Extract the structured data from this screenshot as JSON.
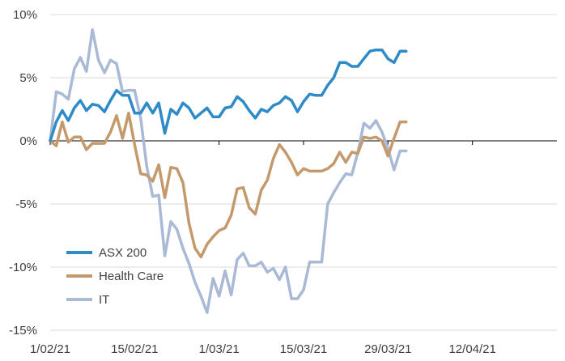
{
  "chart_data": {
    "type": "line",
    "title": "",
    "xlabel": "",
    "ylabel": "",
    "ylim": [
      -15,
      10
    ],
    "yticks": [
      -15,
      -10,
      -5,
      0,
      5,
      10
    ],
    "ytick_labels": [
      "-15%",
      "-10%",
      "-5%",
      "0%",
      "5%",
      "10%"
    ],
    "xlim": [
      "2021-02-01",
      "2021-04-26"
    ],
    "xticks": [
      "2021-02-01",
      "2021-02-15",
      "2021-03-01",
      "2021-03-15",
      "2021-03-29",
      "2021-04-12"
    ],
    "xtick_labels": [
      "1/02/21",
      "15/02/21",
      "1/03/21",
      "15/03/21",
      "29/03/21",
      "12/04/21"
    ],
    "grid": "horizontal",
    "legend_position": "bottom-left",
    "series": [
      {
        "name": "ASX 200",
        "color": "#2E8BC8",
        "points": [
          [
            "2021-02-01",
            0.0
          ],
          [
            "2021-02-02",
            1.5
          ],
          [
            "2021-02-03",
            2.4
          ],
          [
            "2021-02-04",
            1.6
          ],
          [
            "2021-02-05",
            2.6
          ],
          [
            "2021-02-06",
            3.2
          ],
          [
            "2021-02-07",
            2.4
          ],
          [
            "2021-02-08",
            2.9
          ],
          [
            "2021-02-09",
            2.8
          ],
          [
            "2021-02-10",
            2.3
          ],
          [
            "2021-02-11",
            3.2
          ],
          [
            "2021-02-12",
            4.0
          ],
          [
            "2021-02-13",
            3.6
          ],
          [
            "2021-02-14",
            3.6
          ],
          [
            "2021-02-15",
            2.2
          ],
          [
            "2021-02-16",
            2.2
          ],
          [
            "2021-02-17",
            3.0
          ],
          [
            "2021-02-18",
            2.2
          ],
          [
            "2021-02-19",
            3.0
          ],
          [
            "2021-02-20",
            0.6
          ],
          [
            "2021-02-21",
            2.5
          ],
          [
            "2021-02-22",
            2.1
          ],
          [
            "2021-02-23",
            3.0
          ],
          [
            "2021-02-24",
            2.6
          ],
          [
            "2021-02-25",
            1.8
          ],
          [
            "2021-02-26",
            2.2
          ],
          [
            "2021-02-27",
            2.6
          ],
          [
            "2021-02-28",
            1.9
          ],
          [
            "2021-03-01",
            1.9
          ],
          [
            "2021-03-02",
            2.6
          ],
          [
            "2021-03-03",
            2.7
          ],
          [
            "2021-03-04",
            3.5
          ],
          [
            "2021-03-05",
            3.1
          ],
          [
            "2021-03-06",
            2.4
          ],
          [
            "2021-03-07",
            1.8
          ],
          [
            "2021-03-08",
            2.5
          ],
          [
            "2021-03-09",
            2.3
          ],
          [
            "2021-03-10",
            2.8
          ],
          [
            "2021-03-11",
            3.0
          ],
          [
            "2021-03-12",
            3.5
          ],
          [
            "2021-03-13",
            3.2
          ],
          [
            "2021-03-14",
            2.3
          ],
          [
            "2021-03-15",
            3.1
          ],
          [
            "2021-03-16",
            3.7
          ],
          [
            "2021-03-17",
            3.6
          ],
          [
            "2021-03-18",
            3.6
          ],
          [
            "2021-03-19",
            4.4
          ],
          [
            "2021-03-20",
            5.0
          ],
          [
            "2021-03-21",
            6.2
          ],
          [
            "2021-03-22",
            6.2
          ],
          [
            "2021-03-23",
            5.9
          ],
          [
            "2021-03-24",
            5.9
          ],
          [
            "2021-03-25",
            6.5
          ],
          [
            "2021-03-26",
            7.1
          ],
          [
            "2021-03-27",
            7.2
          ],
          [
            "2021-03-28",
            7.2
          ],
          [
            "2021-03-29",
            6.5
          ],
          [
            "2021-03-30",
            6.2
          ],
          [
            "2021-03-31",
            7.1
          ],
          [
            "2021-04-01",
            7.1
          ]
        ]
      },
      {
        "name": "Health Care",
        "color": "#C49A6C",
        "points": [
          [
            "2021-02-01",
            0.0
          ],
          [
            "2021-02-02",
            -0.4
          ],
          [
            "2021-02-03",
            1.5
          ],
          [
            "2021-02-04",
            -0.1
          ],
          [
            "2021-02-05",
            0.3
          ],
          [
            "2021-02-06",
            0.3
          ],
          [
            "2021-02-07",
            -0.7
          ],
          [
            "2021-02-08",
            -0.2
          ],
          [
            "2021-02-09",
            -0.2
          ],
          [
            "2021-02-10",
            -0.2
          ],
          [
            "2021-02-11",
            0.7
          ],
          [
            "2021-02-12",
            2.0
          ],
          [
            "2021-02-13",
            0.2
          ],
          [
            "2021-02-14",
            2.2
          ],
          [
            "2021-02-15",
            -0.3
          ],
          [
            "2021-02-16",
            -2.6
          ],
          [
            "2021-02-17",
            -2.7
          ],
          [
            "2021-02-18",
            -3.2
          ],
          [
            "2021-02-19",
            -1.9
          ],
          [
            "2021-02-20",
            -4.5
          ],
          [
            "2021-02-21",
            -2.1
          ],
          [
            "2021-02-22",
            -2.2
          ],
          [
            "2021-02-23",
            -3.3
          ],
          [
            "2021-02-24",
            -6.5
          ],
          [
            "2021-02-25",
            -8.5
          ],
          [
            "2021-02-26",
            -9.2
          ],
          [
            "2021-02-27",
            -8.2
          ],
          [
            "2021-02-28",
            -7.6
          ],
          [
            "2021-03-01",
            -7.1
          ],
          [
            "2021-03-02",
            -6.9
          ],
          [
            "2021-03-03",
            -5.9
          ],
          [
            "2021-03-04",
            -3.8
          ],
          [
            "2021-03-05",
            -3.7
          ],
          [
            "2021-03-06",
            -5.3
          ],
          [
            "2021-03-07",
            -5.8
          ],
          [
            "2021-03-08",
            -3.9
          ],
          [
            "2021-03-09",
            -3.1
          ],
          [
            "2021-03-10",
            -1.4
          ],
          [
            "2021-03-11",
            -0.3
          ],
          [
            "2021-03-12",
            -0.9
          ],
          [
            "2021-03-13",
            -1.7
          ],
          [
            "2021-03-14",
            -2.7
          ],
          [
            "2021-03-15",
            -2.2
          ],
          [
            "2021-03-16",
            -2.4
          ],
          [
            "2021-03-17",
            -2.4
          ],
          [
            "2021-03-18",
            -2.4
          ],
          [
            "2021-03-19",
            -2.2
          ],
          [
            "2021-03-20",
            -1.8
          ],
          [
            "2021-03-21",
            -0.9
          ],
          [
            "2021-03-22",
            -1.7
          ],
          [
            "2021-03-23",
            -0.9
          ],
          [
            "2021-03-24",
            -1.0
          ],
          [
            "2021-03-25",
            0.3
          ],
          [
            "2021-03-26",
            0.2
          ],
          [
            "2021-03-27",
            0.3
          ],
          [
            "2021-03-28",
            0.0
          ],
          [
            "2021-03-29",
            -1.2
          ],
          [
            "2021-03-30",
            0.2
          ],
          [
            "2021-03-31",
            1.5
          ],
          [
            "2021-04-01",
            1.5
          ]
        ]
      },
      {
        "name": "IT",
        "color": "#A9B9D6",
        "points": [
          [
            "2021-02-01",
            0.0
          ],
          [
            "2021-02-02",
            3.9
          ],
          [
            "2021-02-03",
            3.7
          ],
          [
            "2021-02-04",
            3.3
          ],
          [
            "2021-02-05",
            5.7
          ],
          [
            "2021-02-06",
            6.6
          ],
          [
            "2021-02-07",
            5.5
          ],
          [
            "2021-02-08",
            8.8
          ],
          [
            "2021-02-09",
            6.4
          ],
          [
            "2021-02-10",
            5.4
          ],
          [
            "2021-02-11",
            6.4
          ],
          [
            "2021-02-12",
            6.1
          ],
          [
            "2021-02-13",
            3.9
          ],
          [
            "2021-02-14",
            4.0
          ],
          [
            "2021-02-15",
            4.0
          ],
          [
            "2021-02-16",
            1.8
          ],
          [
            "2021-02-17",
            -2.0
          ],
          [
            "2021-02-18",
            -4.4
          ],
          [
            "2021-02-19",
            -4.3
          ],
          [
            "2021-02-20",
            -9.1
          ],
          [
            "2021-02-21",
            -6.4
          ],
          [
            "2021-02-22",
            -7.0
          ],
          [
            "2021-02-23",
            -8.5
          ],
          [
            "2021-02-24",
            -9.7
          ],
          [
            "2021-02-25",
            -11.2
          ],
          [
            "2021-02-26",
            -12.3
          ],
          [
            "2021-02-27",
            -13.6
          ],
          [
            "2021-02-28",
            -10.9
          ],
          [
            "2021-03-01",
            -12.3
          ],
          [
            "2021-03-02",
            -10.3
          ],
          [
            "2021-03-03",
            -12.2
          ],
          [
            "2021-03-04",
            -9.4
          ],
          [
            "2021-03-05",
            -8.9
          ],
          [
            "2021-03-06",
            -9.9
          ],
          [
            "2021-03-07",
            -9.9
          ],
          [
            "2021-03-08",
            -9.6
          ],
          [
            "2021-03-09",
            -10.4
          ],
          [
            "2021-03-10",
            -10.1
          ],
          [
            "2021-03-11",
            -11.0
          ],
          [
            "2021-03-12",
            -10.0
          ],
          [
            "2021-03-13",
            -12.5
          ],
          [
            "2021-03-14",
            -12.5
          ],
          [
            "2021-03-15",
            -11.8
          ],
          [
            "2021-03-16",
            -9.6
          ],
          [
            "2021-03-17",
            -9.6
          ],
          [
            "2021-03-18",
            -9.6
          ],
          [
            "2021-03-19",
            -5.0
          ],
          [
            "2021-03-20",
            -4.1
          ],
          [
            "2021-03-21",
            -3.3
          ],
          [
            "2021-03-22",
            -2.6
          ],
          [
            "2021-03-23",
            -2.7
          ],
          [
            "2021-03-24",
            -0.9
          ],
          [
            "2021-03-25",
            1.4
          ],
          [
            "2021-03-26",
            1.0
          ],
          [
            "2021-03-27",
            1.6
          ],
          [
            "2021-03-28",
            0.7
          ],
          [
            "2021-03-29",
            -0.6
          ],
          [
            "2021-03-30",
            -2.3
          ],
          [
            "2021-03-31",
            -0.8
          ],
          [
            "2021-04-01",
            -0.8
          ]
        ]
      }
    ]
  }
}
